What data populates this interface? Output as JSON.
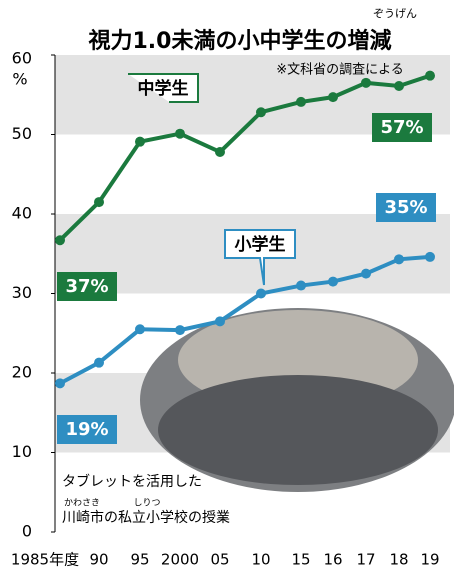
{
  "chart_data": {
    "type": "line",
    "title": "視力1.0未満の小中学生の増減",
    "title_ruby": "ぞうげん",
    "source": "※文科省の調査による",
    "y_unit": "%",
    "categories": [
      "1985年度",
      "90",
      "95",
      "2000",
      "05",
      "10",
      "15",
      "16",
      "17",
      "18",
      "19"
    ],
    "series": [
      {
        "name": "中学生",
        "color": "#1b7a3e",
        "values": [
          36.7,
          41.5,
          49.1,
          50.1,
          47.8,
          52.8,
          54.1,
          54.7,
          56.5,
          56.1,
          57.4
        ],
        "value_labels": [
          "37%",
          null,
          null,
          null,
          null,
          null,
          null,
          null,
          null,
          null,
          "57%"
        ]
      },
      {
        "name": "小学生",
        "color": "#2e8ec2",
        "values": [
          18.7,
          21.3,
          25.5,
          25.4,
          26.5,
          30.0,
          31.0,
          31.5,
          32.5,
          34.3,
          34.6
        ],
        "value_labels": [
          "19%",
          null,
          null,
          null,
          null,
          null,
          null,
          null,
          null,
          null,
          "35%"
        ]
      }
    ],
    "ylim": [
      0,
      60
    ],
    "yticks": [
      0,
      10,
      20,
      30,
      40,
      50,
      60
    ],
    "grid": true,
    "photo_caption": {
      "line1": "タブレットを活用した",
      "ruby1": "かわさき",
      "ruby2": "しりつ",
      "line2": "川崎市の私立小学校の授業"
    }
  }
}
